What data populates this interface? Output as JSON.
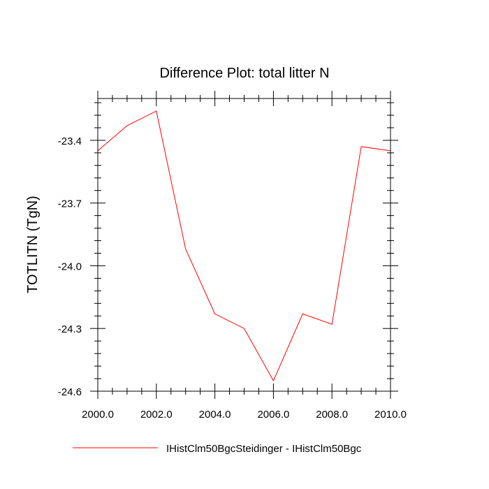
{
  "chart_data": {
    "type": "line",
    "title": "Difference Plot: total litter N",
    "xlabel": "",
    "ylabel": "TOTLITN  (TgN)",
    "xlim": [
      2000,
      2010
    ],
    "ylim": [
      -24.6,
      -23.2
    ],
    "x_ticks": [
      2000,
      2002,
      2004,
      2006,
      2008,
      2010
    ],
    "x_tick_labels": [
      "2000.0",
      "2002.0",
      "2004.0",
      "2006.0",
      "2008.0",
      "2010.0"
    ],
    "y_ticks": [
      -23.4,
      -23.7,
      -24.0,
      -24.3,
      -24.6
    ],
    "y_tick_labels": [
      "-23.4",
      "-23.7",
      "-24.0",
      "-24.3",
      "-24.6"
    ],
    "grid": false,
    "legend_position": "bottom",
    "series": [
      {
        "name": "IHistClm50BgcSteidinger - IHistClm50Bgc",
        "color": "#ff0000",
        "x": [
          2000,
          2001,
          2002,
          2003,
          2004,
          2005,
          2006,
          2007,
          2008,
          2009,
          2010
        ],
        "y": [
          -23.45,
          -23.33,
          -23.26,
          -23.92,
          -24.23,
          -24.3,
          -24.55,
          -24.23,
          -24.28,
          -23.43,
          -23.45
        ]
      }
    ]
  }
}
